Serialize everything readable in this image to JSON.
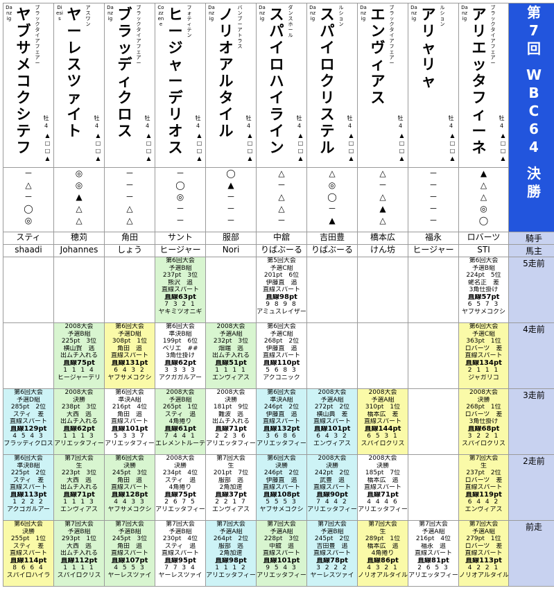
{
  "event": {
    "title_lines": [
      "第",
      "7",
      "回",
      "",
      "W",
      "B",
      "C",
      "6",
      "4",
      "",
      "決",
      "勝"
    ]
  },
  "labels": {
    "jockey": "騎手",
    "owner": "馬主",
    "run5": "5走前",
    "run4": "4走前",
    "run3": "3走前",
    "run2": "2走前",
    "run1": "前走"
  },
  "horses": [
    {
      "sire": "Danzig",
      "name": "ヤブサメコクシテフ",
      "dam": "ブラックタイアフェアー",
      "age": "牡4",
      "tiny": "▲□□▲",
      "marks": [
        "－",
        "△",
        "－",
        "◯",
        "◎"
      ],
      "jockey": "スティ",
      "owner": "shaadi",
      "runs": [
        null,
        null,
        {
          "color": "cyan",
          "lines": [
            "第6回大会",
            "予選D組",
            "285pt　2位",
            "スティ　差",
            "直線スパート",
            "直線129pt",
            "4 5 4 3",
            "ブラッディクロス"
          ]
        },
        {
          "color": "cyan",
          "lines": [
            "第6回大会",
            "準決B組",
            "225pt　2位",
            "スティ　差",
            "直線スパート",
            "直線113pt",
            "1 2 2 2",
            "アクゴガルアー"
          ]
        },
        {
          "color": "yellow",
          "lines": [
            "第6回大会",
            "決勝",
            "255pt　1位",
            "スティ　差",
            "直線スパート",
            "直線114pt",
            "8 6 6 4",
            "スパイロハイラ"
          ]
        }
      ]
    },
    {
      "sire": "Diesis",
      "name": "ヤーレスツァイト",
      "dam": "アスワン",
      "age": "牡4",
      "tiny": "▲□□▲",
      "marks": [
        "◎",
        "◎",
        "▲",
        "△",
        "△"
      ],
      "jockey": "穂苅",
      "owner": "Johannes",
      "runs": [
        null,
        {
          "color": "green",
          "lines": [
            "2008大会",
            "予選B組",
            "225pt　3位",
            "横山賀　逃",
            "出ムチ入れる",
            "直線75pt",
            "1 1 1 4",
            "ヒージャーデリ"
          ]
        },
        {
          "color": "green",
          "lines": [
            "2008大会",
            "決勝",
            "238pt　3位",
            "大西　逃",
            "出ムチ入れる",
            "直線62pt",
            "1 1 1 3",
            "アリエッタフィー"
          ]
        },
        {
          "color": "green",
          "lines": [
            "第7回大会",
            "生",
            "223pt　3位",
            "大西　逃",
            "出ムチ入れる",
            "直線71pt",
            "1 1 1 3",
            "エンヴィアス"
          ]
        },
        {
          "color": "green",
          "lines": [
            "第7回大会",
            "予選B組",
            "293pt　1位",
            "大西　逃",
            "出ムチ入れる",
            "直線112pt",
            "1 1 1 1",
            "スパイロクリス"
          ]
        }
      ]
    },
    {
      "sire": "Danzig",
      "name": "ブラッディクロス",
      "dam": "ブラックタイアフェアー",
      "age": "牡4",
      "tiny": "▲□□▲",
      "marks": [
        "－",
        "－",
        "－",
        "△",
        "△"
      ],
      "jockey": "角田",
      "owner": "しょう",
      "runs": [
        null,
        {
          "color": "yellow",
          "lines": [
            "第6回大会",
            "予選D組",
            "308pt　1位",
            "角田　追",
            "直線スパート",
            "直線131pt",
            "6 4 3 2",
            "ヤブサメコクシ"
          ]
        },
        {
          "color": "none",
          "lines": [
            "第6回大会",
            "準決A組",
            "216pt　4位",
            "角田　追",
            "直線スパート",
            "直線101pt",
            "5 3 3 7",
            "アリエッタフィー"
          ]
        },
        {
          "color": "green",
          "lines": [
            "第6回大会",
            "決勝",
            "245pt　3位",
            "角田　追",
            "直線スパート",
            "直線128pt",
            "4 4 3 3",
            "ヤブサメコクシ"
          ]
        },
        {
          "color": "green",
          "lines": [
            "第7回大会",
            "予選B組",
            "245pt　3位",
            "角田　追",
            "直線スパート",
            "直線107pt",
            "4 5 5 3",
            "ヤーレスツァイ"
          ]
        }
      ]
    },
    {
      "sire": "Cozzene",
      "name": "ヒージャーデリオス",
      "dam": "フォティテン",
      "age": "牡4",
      "tiny": "▲□□▲",
      "marks": [
        "－",
        "◯",
        "◎",
        "－",
        "－"
      ],
      "jockey": "サント",
      "owner": "ヒージャー",
      "runs": [
        {
          "color": "green",
          "lines": [
            "第6回大会",
            "予選B組",
            "237pt　3位",
            "熊沢　追",
            "直線スパート",
            "直線63pt",
            "7 3 2 1",
            "ヤキミツオニギ"
          ]
        },
        {
          "color": "none",
          "lines": [
            "第6回大会",
            "準決B組",
            "199pt　6位",
            "ベリエ　##",
            "3角仕掛け",
            "直線62pt",
            "3 3 3 3",
            "アクガガルアー"
          ]
        },
        {
          "color": "green",
          "lines": [
            "2008大会",
            "予選B組",
            "265pt　1位",
            "スティ　追",
            "4角捲り",
            "直線61pt",
            "7 4 4 1",
            "エレメントルーテ"
          ]
        },
        {
          "color": "none",
          "lines": [
            "2008大会",
            "決勝",
            "234pt　4位",
            "スティ　追",
            "4角捲り",
            "直線75pt",
            "2 6 7 5",
            "アリエッタフィー"
          ]
        },
        {
          "color": "none",
          "lines": [
            "第7回大会",
            "予選B組",
            "230pt　4位",
            "スティ　追",
            "直線スパート",
            "直線95pt",
            "7 7 3 4",
            "ヤーレスツァイ"
          ]
        }
      ]
    },
    {
      "sire": "Danzig",
      "name": "ノリオアルタイル",
      "dam": "バンブーアトラス",
      "age": "牡4",
      "tiny": "▲□□▲",
      "marks": [
        "◯",
        "▲",
        "－",
        "－",
        "－"
      ],
      "jockey": "服部",
      "owner": "Nori",
      "runs": [
        null,
        {
          "color": "green",
          "lines": [
            "2008大会",
            "予選A組",
            "232pt　3位",
            "畑端　逃",
            "出ムチ入れる",
            "直線51pt",
            "1 1 1 1",
            "エンヴィアス"
          ]
        },
        {
          "color": "none",
          "lines": [
            "2008大会",
            "決勝",
            "181pt　9位",
            "難波　逃",
            "出ムチ入れる",
            "直線71pt",
            "2 2 3 6",
            "アリエッタフィー"
          ]
        },
        {
          "color": "none",
          "lines": [
            "第7回大会",
            "生",
            "201pt　7位",
            "服部　逃",
            "2角加速",
            "直線37pt",
            "2 2 1 7",
            "エンヴィアス"
          ]
        },
        {
          "color": "cyan",
          "lines": [
            "第7回大会",
            "予選A組",
            "264pt　2位",
            "服部　逃",
            "2角加速",
            "直線98pt",
            "1 1 1 2",
            "アリエッタフィー"
          ]
        }
      ]
    },
    {
      "sire": "Danzig",
      "name": "スパイロハイライン",
      "dam": "ダンスホール",
      "age": "牡4",
      "tiny": "▲□□▲",
      "marks": [
        "△",
        "－",
        "△",
        "△",
        "－"
      ],
      "jockey": "中舘",
      "owner": "りばぶーる",
      "runs": [
        {
          "color": "none",
          "lines": [
            "第5回大会",
            "予選C組",
            "201pt　6位",
            "伊藤直　追",
            "直線スパート",
            "直線98pt",
            "9 8 9 8",
            "アミュスレイザー"
          ]
        },
        {
          "color": "none",
          "lines": [
            "第6回大会",
            "予選C組",
            "268pt　2位",
            "伊藤直　追",
            "直線スパート",
            "直線110pt",
            "5 6 8 3",
            "アクコニック"
          ]
        },
        {
          "color": "cyan",
          "lines": [
            "第6回大会",
            "準決A組",
            "246pt　2位",
            "伊藤直　追",
            "直線スパート",
            "直線132pt",
            "3 6 8 6",
            "アリエッタフィー"
          ]
        },
        {
          "color": "cyan",
          "lines": [
            "第6回大会",
            "決勝",
            "246pt　2位",
            "伊藤直　追",
            "直線スパート",
            "直線108pt",
            "5 5 5 3",
            "ヤブサメコクシ"
          ]
        },
        {
          "color": "green",
          "lines": [
            "第7回大会",
            "予選A組",
            "228pt　3位",
            "中舘　追",
            "直線スパート",
            "直線101pt",
            "9 5 4 3",
            "アリエッタフィー"
          ]
        }
      ]
    },
    {
      "sire": "Danzig",
      "name": "スパイロクリステル",
      "dam": "ルション",
      "age": "牡4",
      "tiny": "▲□□▲",
      "marks": [
        "△",
        "◎",
        "◯",
        "－",
        "▲"
      ],
      "jockey": "吉田豊",
      "owner": "りばぶーる",
      "runs": [
        null,
        null,
        {
          "color": "cyan",
          "lines": [
            "2008大会",
            "予選A組",
            "272pt　2位",
            "横山典　差",
            "直線スパート",
            "直線101pt",
            "6 4 3 2",
            "エンヴィアス"
          ]
        },
        {
          "color": "cyan",
          "lines": [
            "2008大会",
            "決勝",
            "242pt　2位",
            "武豊　追",
            "直線スパート",
            "直線90pt",
            "7 4 4 2",
            "アリエッタフィー"
          ]
        },
        {
          "color": "cyan",
          "lines": [
            "第7回大会",
            "予選B組",
            "245pt　2位",
            "吉田豊　追",
            "直線スパート",
            "直線78pt",
            "3 2 2 2",
            "ヤーレスツァイ"
          ]
        }
      ]
    },
    {
      "sire": "Danzig",
      "name": "エンヴィアス",
      "dam": "ブラックタイアフェアー",
      "age": "牡4",
      "tiny": "▲□□▲",
      "marks": [
        "△",
        "－",
        "△",
        "▲",
        "△"
      ],
      "jockey": "橋本広",
      "owner": "けん坊",
      "runs": [
        null,
        null,
        {
          "color": "yellow",
          "lines": [
            "2008大会",
            "予選A組",
            "310pt　1位",
            "橋本広　差",
            "直線スパート",
            "直線144pt",
            "6 5 3 1",
            "スパイロクリス"
          ]
        },
        {
          "color": "none",
          "lines": [
            "2008大会",
            "決勝",
            "185pt　7位",
            "橋本広　追",
            "直線スパート",
            "直線71pt",
            "4 4 4 6",
            "アリエッタフィー"
          ]
        },
        {
          "color": "yellow",
          "lines": [
            "第7回大会",
            "生",
            "289pt　1位",
            "橋本広　追",
            "4角捲り",
            "直線86pt",
            "4 3 2 1",
            "ノリオアルタイル"
          ]
        }
      ]
    },
    {
      "sire": "Danzig",
      "name": "アリャリャ",
      "dam": "ルション",
      "age": "牡4",
      "tiny": "▲□□▲",
      "marks": [
        "－",
        "－",
        "－",
        "－",
        "－"
      ],
      "jockey": "福永",
      "owner": "ヒージャー",
      "runs": [
        null,
        null,
        null,
        null,
        {
          "color": "none",
          "lines": [
            "第7回大会",
            "予選A組",
            "216pt　4位",
            "福永　追",
            "直線スパート",
            "直線81pt",
            "2 6 5 3",
            "アリエッタフィー"
          ]
        }
      ]
    },
    {
      "sire": "Danzig",
      "name": "アリエッタフィーネ",
      "dam": "ブラックタイアフェアー",
      "age": "牡4",
      "tiny": "▲□□▲",
      "marks": [
        "▲",
        "△",
        "△",
        "◎",
        "◯"
      ],
      "jockey": "ロバーツ",
      "owner": "STI",
      "runs": [
        {
          "color": "none",
          "lines": [
            "第6回大会",
            "予選B組",
            "224pt　5位",
            "蛯名正　差",
            "3角仕掛け",
            "直線57pt",
            "6 5 7 3",
            "ヤブサメコクシ"
          ]
        },
        {
          "color": "yellow",
          "lines": [
            "第6回大会",
            "予選C組",
            "363pt　1位",
            "ロバーツ　差",
            "直線スパート",
            "直線134pt",
            "2 1 1 1",
            "ジャガリコ"
          ]
        },
        {
          "color": "yellow",
          "lines": [
            "2008大会",
            "決勝",
            "268pt　1位",
            "ロバーツ　差",
            "3角仕掛け",
            "直線68pt",
            "3 2 2 1",
            "スパイロクリス"
          ]
        },
        {
          "color": "yellow",
          "lines": [
            "第7回大会",
            "生",
            "237pt　2位",
            "ロバーツ　差",
            "直線スパート",
            "直線119pt",
            "6 4 4 2",
            "エンヴィアス"
          ]
        },
        {
          "color": "yellow",
          "lines": [
            "第7回大会",
            "予選A組",
            "279pt　1位",
            "ロバーツ　差",
            "直線スパート",
            "直線113pt",
            "4 2 2 1",
            "ノリオアルタイル"
          ]
        }
      ]
    }
  ]
}
